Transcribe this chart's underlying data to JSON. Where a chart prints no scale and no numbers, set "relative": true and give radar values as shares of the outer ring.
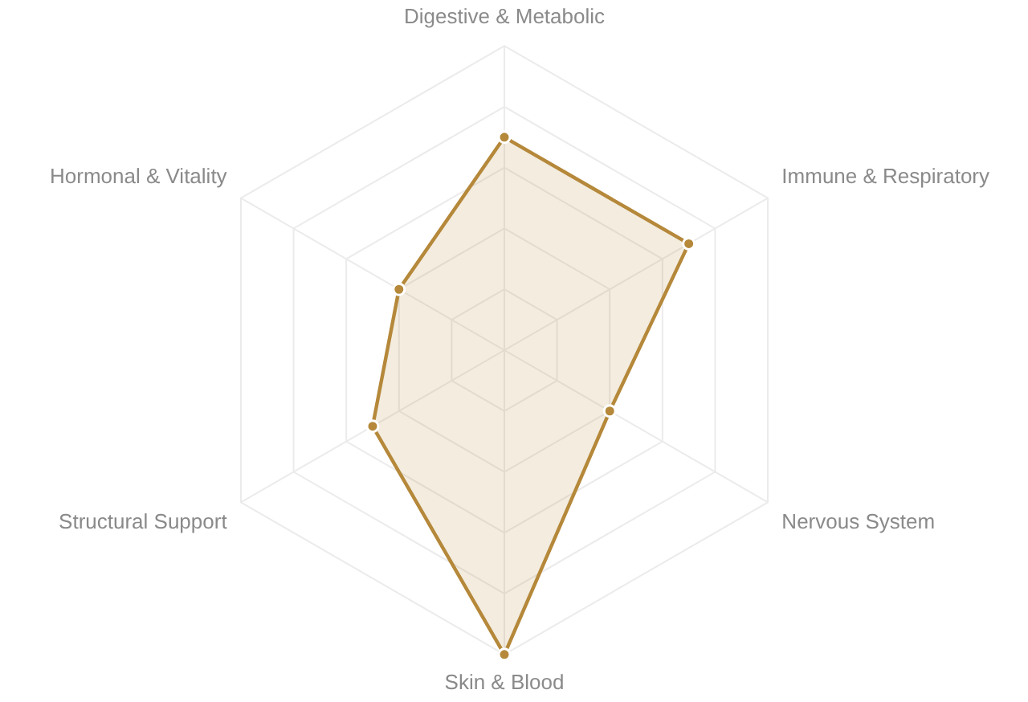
{
  "chart_data": {
    "type": "radar",
    "categories": [
      "Digestive & Metabolic",
      "Immune & Respiratory",
      "Nervous System",
      "Skin & Blood",
      "Structural Support",
      "Hormonal & Vitality"
    ],
    "relative": true,
    "series": [
      {
        "color": "#b5883a",
        "values": [
          0.7,
          0.7,
          0.4,
          1.0,
          0.5,
          0.4
        ]
      }
    ],
    "grid": true,
    "marker": "circle"
  }
}
